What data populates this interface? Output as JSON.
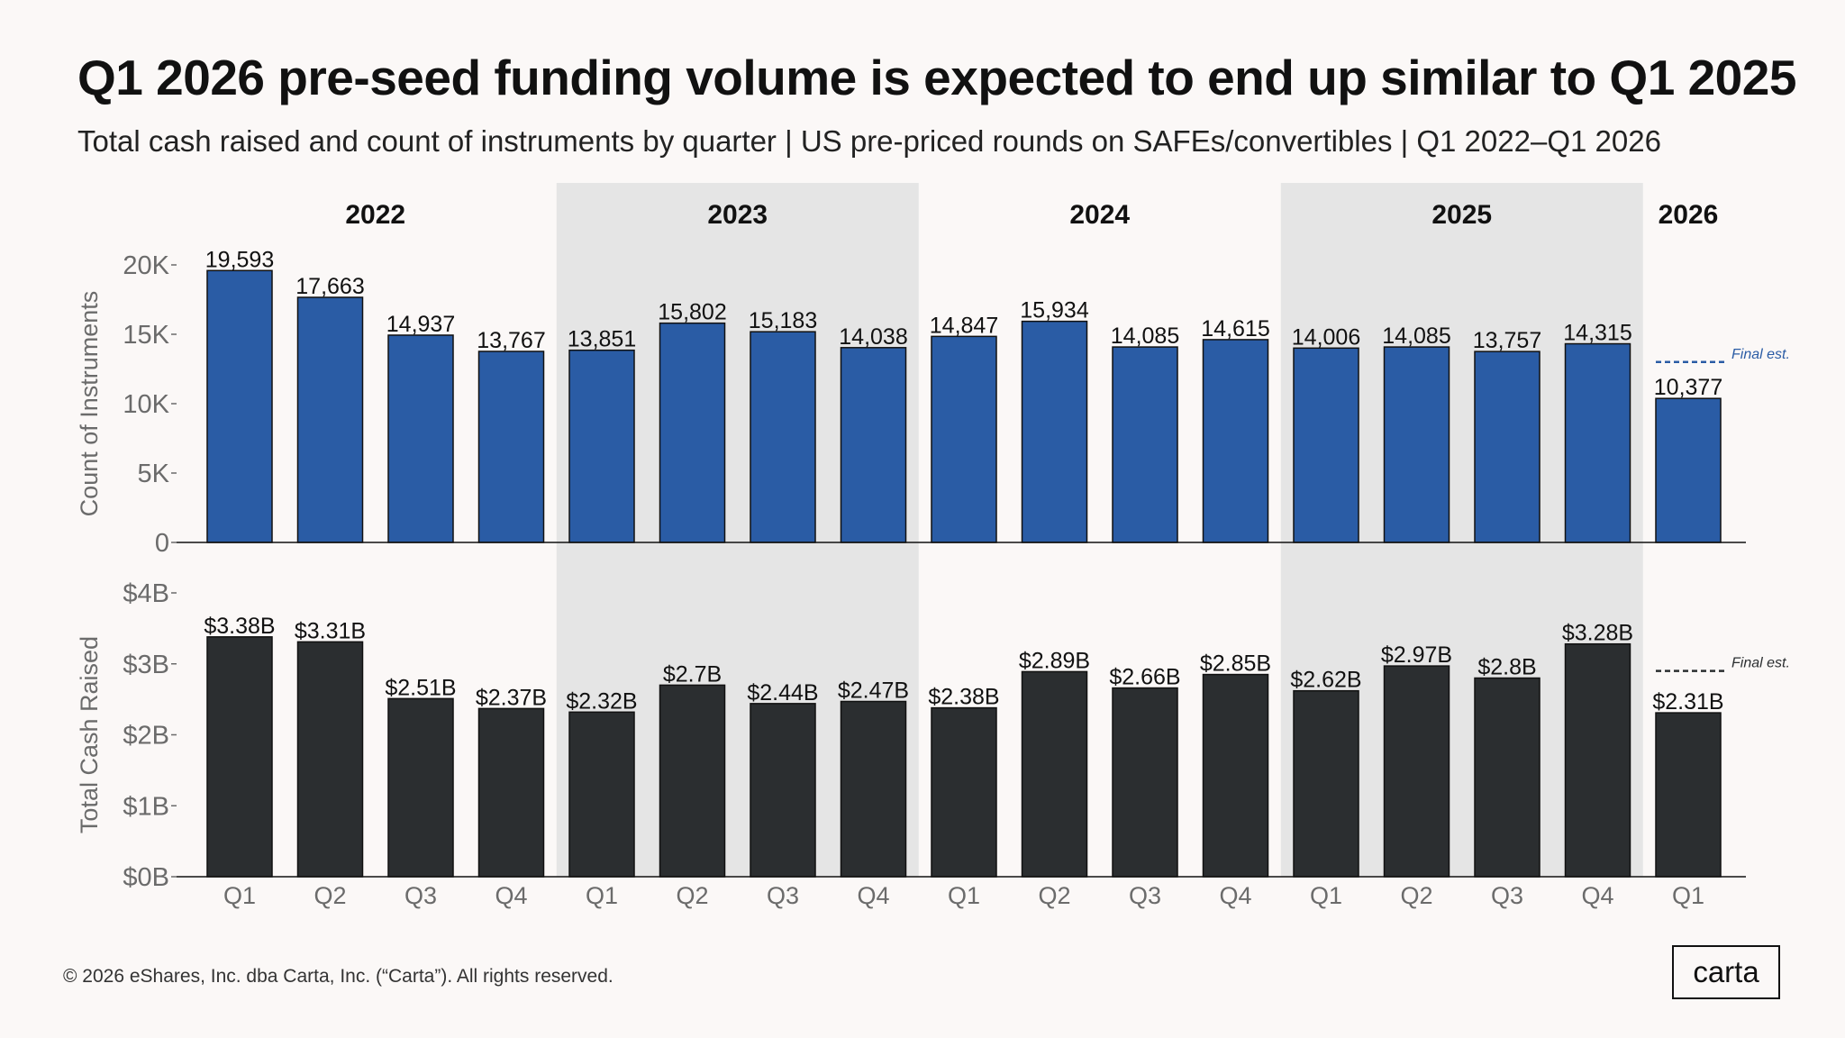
{
  "header": {
    "title": "Q1 2026 pre-seed funding volume is expected to end up similar to Q1 2025",
    "subtitle": "Total cash raised and count of instruments by quarter | US pre-priced rounds on SAFEs/convertibles | Q1 2022–Q1 2026"
  },
  "footer": {
    "copyright": "© 2026 eShares, Inc. dba Carta, Inc. (“Carta”). All rights reserved.",
    "logo_text": "carta"
  },
  "colors": {
    "background": "#fbf8f7",
    "band": "#e5e5e5",
    "count_bar": "#2a5ca5",
    "cash_bar": "#2b2e30",
    "axis_text": "#6b6b6b",
    "count_estimate_line": "#2a5ca5",
    "cash_estimate_line": "#2b2e30"
  },
  "chart_data": {
    "type": "bar",
    "years": [
      {
        "label": "2022",
        "quarters": 4,
        "shaded": false
      },
      {
        "label": "2023",
        "quarters": 4,
        "shaded": true
      },
      {
        "label": "2024",
        "quarters": 4,
        "shaded": false
      },
      {
        "label": "2025",
        "quarters": 4,
        "shaded": true
      },
      {
        "label": "2026",
        "quarters": 1,
        "shaded": false
      }
    ],
    "categories": [
      "Q1",
      "Q2",
      "Q3",
      "Q4",
      "Q1",
      "Q2",
      "Q3",
      "Q4",
      "Q1",
      "Q2",
      "Q3",
      "Q4",
      "Q1",
      "Q2",
      "Q3",
      "Q4",
      "Q1"
    ],
    "panels": [
      {
        "id": "count",
        "ylabel": "Count of Instruments",
        "ylim": [
          0,
          20000
        ],
        "ticks": [
          0,
          5000,
          10000,
          15000,
          20000
        ],
        "tick_labels": [
          "0",
          "5K",
          "10K",
          "15K",
          "20K"
        ],
        "values": [
          19593,
          17663,
          14937,
          13767,
          13851,
          15802,
          15183,
          14038,
          14847,
          15934,
          14085,
          14615,
          14006,
          14085,
          13757,
          14315,
          10377
        ],
        "labels": [
          "19,593",
          "17,663",
          "14,937",
          "13,767",
          "13,851",
          "15,802",
          "15,183",
          "14,038",
          "14,847",
          "15,934",
          "14,085",
          "14,615",
          "14,006",
          "14,085",
          "13,757",
          "14,315",
          "10,377"
        ],
        "final_estimate": {
          "value": 13000,
          "label": "Final est."
        }
      },
      {
        "id": "cash",
        "ylabel": "Total Cash Raised",
        "ylim": [
          0,
          4
        ],
        "ticks": [
          0,
          1,
          2,
          3,
          4
        ],
        "tick_labels": [
          "$0B",
          "$1B",
          "$2B",
          "$3B",
          "$4B"
        ],
        "values": [
          3.38,
          3.31,
          2.51,
          2.37,
          2.32,
          2.7,
          2.44,
          2.47,
          2.38,
          2.89,
          2.66,
          2.85,
          2.62,
          2.97,
          2.8,
          3.28,
          2.31
        ],
        "labels": [
          "$3.38B",
          "$3.31B",
          "$2.51B",
          "$2.37B",
          "$2.32B",
          "$2.7B",
          "$2.44B",
          "$2.47B",
          "$2.38B",
          "$2.89B",
          "$2.66B",
          "$2.85B",
          "$2.62B",
          "$2.97B",
          "$2.8B",
          "$3.28B",
          "$2.31B"
        ],
        "final_estimate": {
          "value": 2.9,
          "label": "Final est."
        }
      }
    ]
  }
}
